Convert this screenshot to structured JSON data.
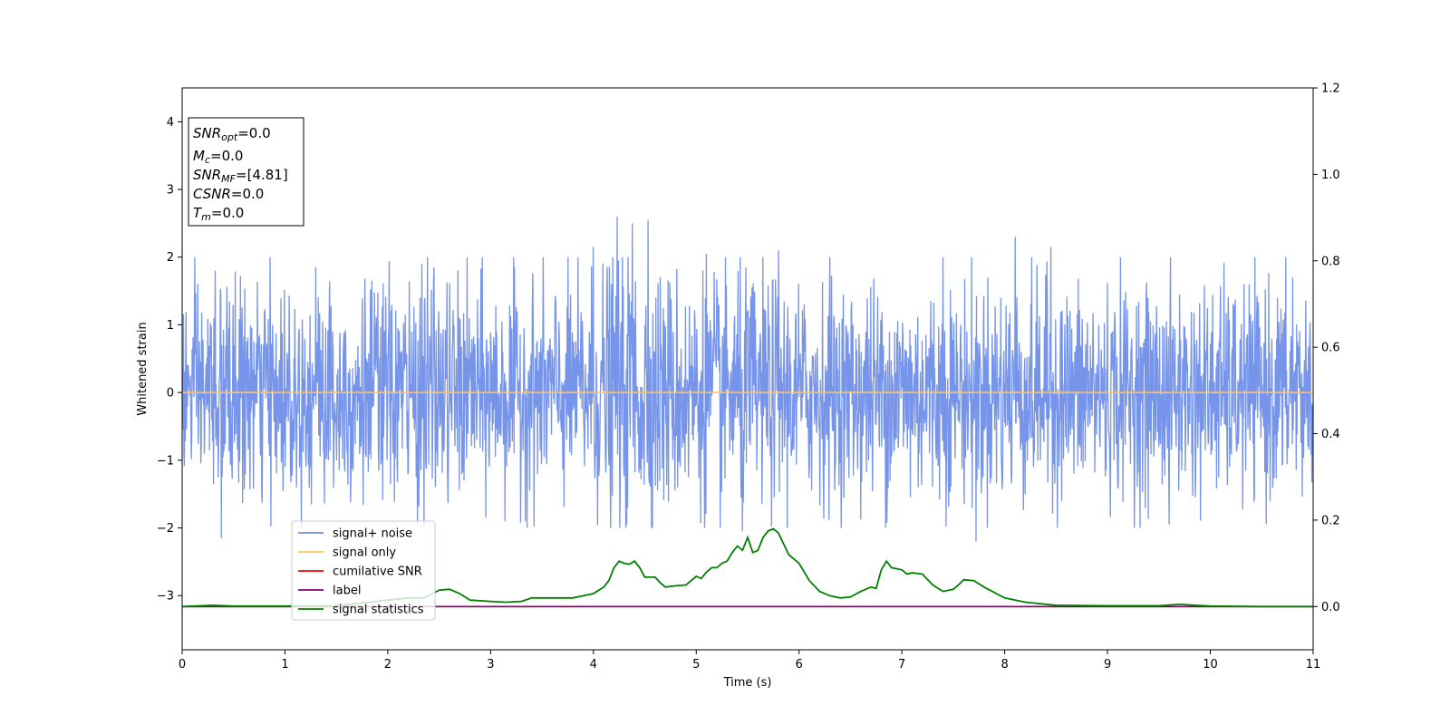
{
  "chart_data": {
    "type": "line",
    "xlabel": "Time (s)",
    "ylabel": "Whitened strain",
    "xlim": [
      0,
      11
    ],
    "ylim": [
      -3.8,
      4.5
    ],
    "y2lim": [
      -0.1,
      1.2
    ],
    "x_ticks": [
      0,
      1,
      2,
      3,
      4,
      5,
      6,
      7,
      8,
      9,
      10,
      11
    ],
    "y_ticks": [
      -3,
      -2,
      -1,
      0,
      1,
      2,
      3,
      4
    ],
    "y_tick_labels": [
      "−3",
      "−2",
      "−1",
      "0",
      "1",
      "2",
      "3",
      "4"
    ],
    "y2_ticks": [
      0.0,
      0.2,
      0.4,
      0.6,
      0.8,
      1.0,
      1.2
    ],
    "y2_tick_labels": [
      "0.0",
      "0.2",
      "0.4",
      "0.6",
      "0.8",
      "1.0",
      "1.2"
    ],
    "grid": false,
    "legend_position": "lower-left",
    "annotation": {
      "lines": [
        {
          "sym": "SNR",
          "sub": "opt",
          "val": "=0.0"
        },
        {
          "sym": "M",
          "sub": "c",
          "val": "=0.0"
        },
        {
          "sym": "SNR",
          "sub": "MF",
          "val": "=[4.81]"
        },
        {
          "sym": "CSNR",
          "sub": "",
          "val": "=0.0"
        },
        {
          "sym": "T",
          "sub": "m",
          "val": "=0.0"
        }
      ]
    },
    "series": [
      {
        "name": "signal+ noise",
        "axis": "left",
        "color": "#6f8ee8",
        "style": "noise",
        "amplitude_envelope": {
          "x": [
            0,
            0.5,
            1,
            1.5,
            2,
            2.5,
            3,
            3.5,
            4,
            4.2,
            4.5,
            5,
            5.5,
            6,
            6.5,
            7,
            7.5,
            8,
            8.5,
            9,
            9.5,
            10,
            10.5,
            11
          ],
          "y": [
            1.3,
            1.4,
            1.4,
            1.5,
            1.5,
            1.5,
            1.4,
            1.4,
            1.5,
            1.9,
            1.7,
            1.5,
            1.6,
            1.4,
            1.4,
            1.5,
            1.4,
            1.5,
            1.4,
            1.4,
            1.4,
            1.4,
            1.4,
            1.4
          ]
        },
        "peaks": [
          {
            "x": 0.32,
            "y": 1.8
          },
          {
            "x": 0.38,
            "y": -2.15
          },
          {
            "x": 1.3,
            "y": 1.85
          },
          {
            "x": 2.33,
            "y": 1.9
          },
          {
            "x": 2.45,
            "y": 1.85
          },
          {
            "x": 4.0,
            "y": 2.15
          },
          {
            "x": 4.23,
            "y": 2.6
          },
          {
            "x": 4.38,
            "y": 2.5
          },
          {
            "x": 4.53,
            "y": 2.55
          },
          {
            "x": 5.1,
            "y": 2.05
          },
          {
            "x": 5.45,
            "y": -2.05
          },
          {
            "x": 5.8,
            "y": 2.1
          },
          {
            "x": 6.3,
            "y": 2.0
          },
          {
            "x": 7.4,
            "y": 2.0
          },
          {
            "x": 7.72,
            "y": -2.2
          },
          {
            "x": 8.1,
            "y": 2.3
          },
          {
            "x": 8.45,
            "y": 2.15
          },
          {
            "x": 9.6,
            "y": -1.95
          },
          {
            "x": 10.8,
            "y": 1.7
          }
        ]
      },
      {
        "name": "signal only",
        "axis": "left",
        "color": "#ffc266",
        "x": [
          0,
          11
        ],
        "y": [
          0,
          0
        ]
      },
      {
        "name": "cumilative SNR",
        "axis": "right",
        "color": "#ff0000",
        "x": [
          0,
          11
        ],
        "y": [
          0,
          0
        ]
      },
      {
        "name": "label",
        "axis": "right",
        "color": "#800080",
        "x": [
          0,
          11
        ],
        "y": [
          0,
          0
        ]
      },
      {
        "name": "signal statistics",
        "axis": "right",
        "color": "#008000",
        "x": [
          0,
          0.3,
          0.5,
          1.0,
          1.5,
          2.0,
          2.2,
          2.35,
          2.5,
          2.6,
          2.7,
          2.8,
          3.0,
          3.15,
          3.3,
          3.4,
          3.6,
          3.8,
          4.0,
          4.1,
          4.15,
          4.2,
          4.25,
          4.3,
          4.35,
          4.4,
          4.45,
          4.5,
          4.55,
          4.6,
          4.65,
          4.7,
          4.8,
          4.9,
          4.95,
          5.0,
          5.05,
          5.1,
          5.15,
          5.2,
          5.25,
          5.3,
          5.35,
          5.4,
          5.45,
          5.5,
          5.55,
          5.6,
          5.65,
          5.7,
          5.75,
          5.8,
          5.85,
          5.9,
          6.0,
          6.1,
          6.2,
          6.3,
          6.4,
          6.5,
          6.6,
          6.7,
          6.75,
          6.8,
          6.85,
          6.9,
          7.0,
          7.05,
          7.1,
          7.2,
          7.3,
          7.4,
          7.5,
          7.55,
          7.6,
          7.7,
          7.8,
          8.0,
          8.2,
          8.5,
          9.0,
          9.5,
          9.7,
          10.0,
          10.5,
          11
        ],
        "y": [
          0.0,
          0.003,
          0.001,
          0.001,
          0.002,
          0.015,
          0.02,
          0.02,
          0.038,
          0.04,
          0.03,
          0.015,
          0.012,
          0.01,
          0.012,
          0.02,
          0.02,
          0.02,
          0.03,
          0.045,
          0.06,
          0.09,
          0.105,
          0.1,
          0.098,
          0.105,
          0.09,
          0.068,
          0.068,
          0.068,
          0.055,
          0.045,
          0.048,
          0.05,
          0.06,
          0.07,
          0.065,
          0.08,
          0.09,
          0.09,
          0.1,
          0.105,
          0.125,
          0.14,
          0.13,
          0.16,
          0.125,
          0.13,
          0.16,
          0.175,
          0.18,
          0.17,
          0.145,
          0.12,
          0.1,
          0.06,
          0.035,
          0.025,
          0.02,
          0.022,
          0.035,
          0.045,
          0.042,
          0.085,
          0.105,
          0.09,
          0.085,
          0.075,
          0.078,
          0.075,
          0.05,
          0.035,
          0.04,
          0.05,
          0.062,
          0.06,
          0.045,
          0.02,
          0.01,
          0.003,
          0.002,
          0.002,
          0.005,
          0.001,
          0.0,
          0.0
        ]
      }
    ]
  }
}
